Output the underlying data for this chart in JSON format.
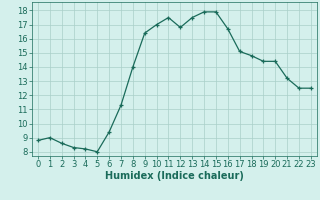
{
  "x": [
    0,
    1,
    2,
    3,
    4,
    5,
    6,
    7,
    8,
    9,
    10,
    11,
    12,
    13,
    14,
    15,
    16,
    17,
    18,
    19,
    20,
    21,
    22,
    23
  ],
  "y": [
    8.8,
    9.0,
    8.6,
    8.3,
    8.2,
    8.0,
    9.4,
    11.3,
    14.0,
    16.4,
    17.0,
    17.5,
    16.8,
    17.5,
    17.9,
    17.9,
    16.7,
    15.1,
    14.8,
    14.4,
    14.4,
    13.2,
    12.5,
    12.5
  ],
  "line_color": "#1a6b5a",
  "marker": "+",
  "marker_size": 3,
  "bg_color": "#d4f0ec",
  "grid_color": "#aacfc9",
  "xlabel": "Humidex (Indice chaleur)",
  "xlabel_fontsize": 7,
  "ylabel_ticks": [
    8,
    9,
    10,
    11,
    12,
    13,
    14,
    15,
    16,
    17,
    18
  ],
  "xlim": [
    -0.5,
    23.5
  ],
  "ylim": [
    7.7,
    18.6
  ],
  "tick_fontsize": 6
}
